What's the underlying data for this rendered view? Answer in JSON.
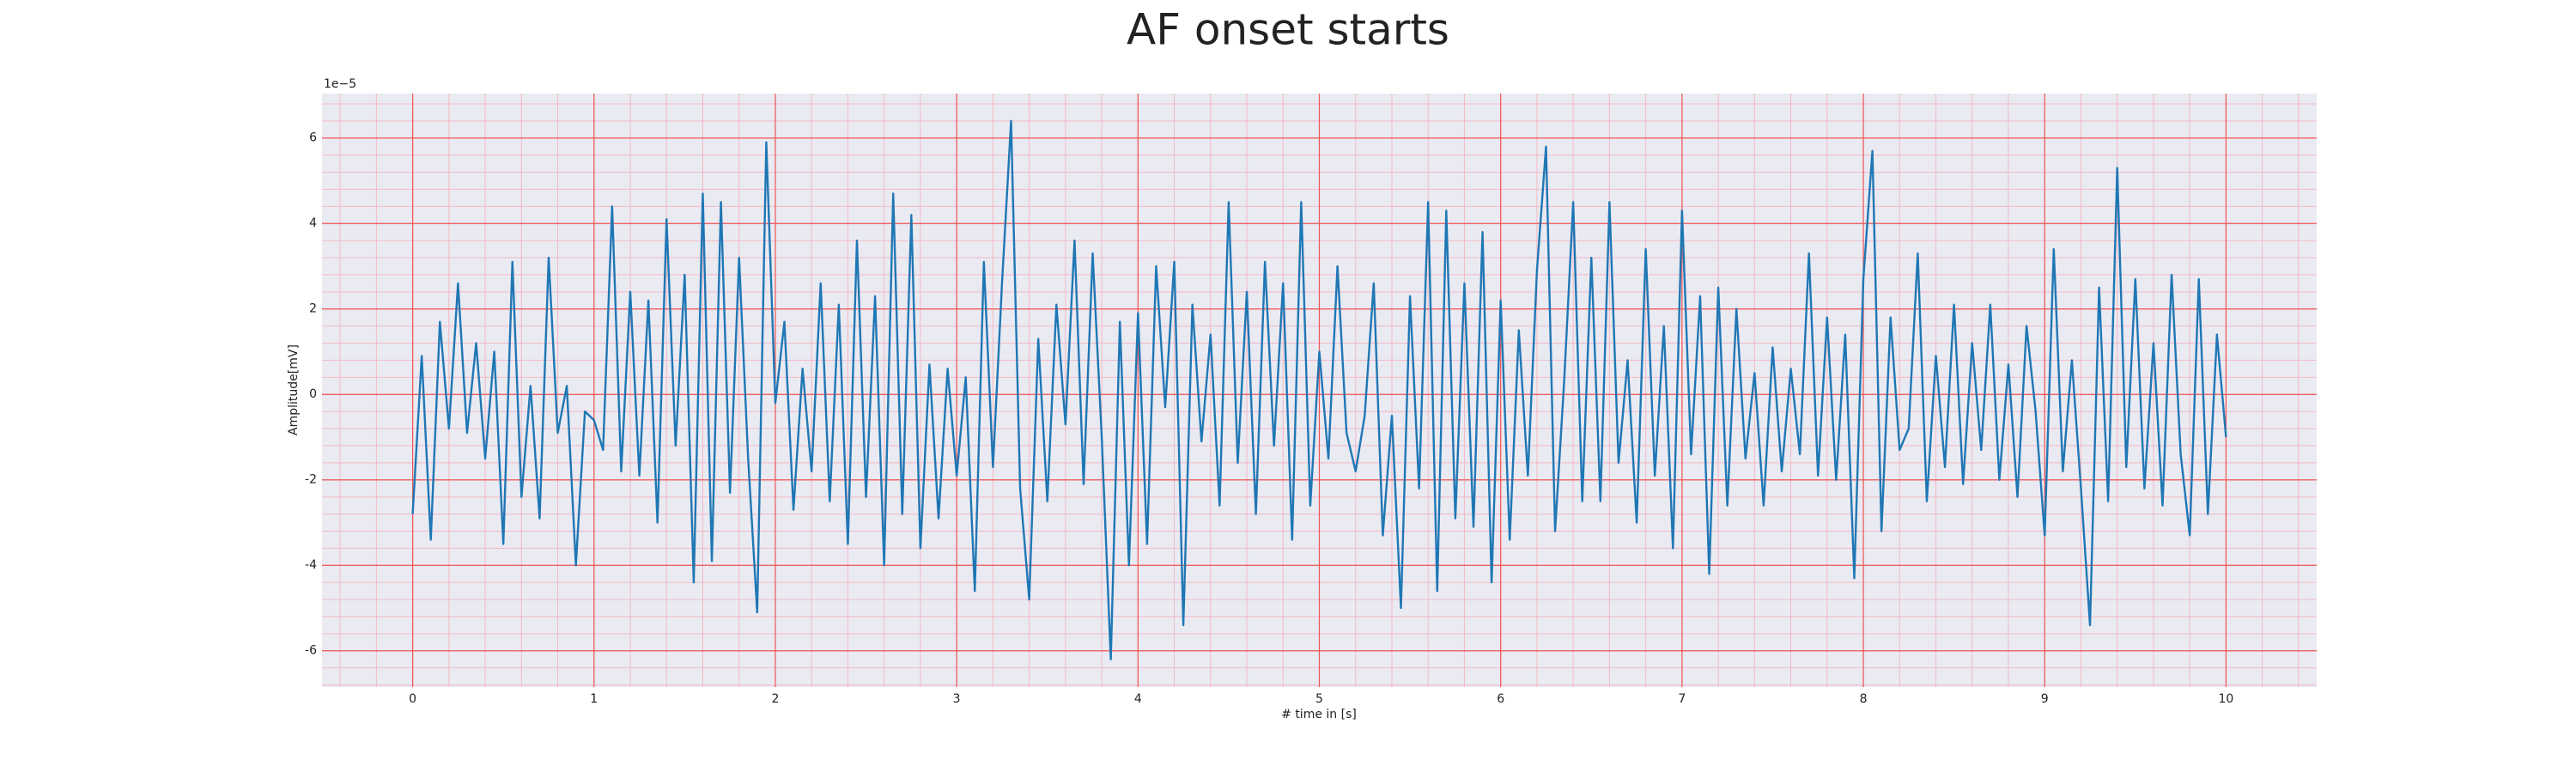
{
  "chart_data": {
    "type": "line",
    "title": "AF onset starts",
    "x_label": "# time in [s]",
    "y_label": "Amplitude[mV]",
    "y_offset_label": "1e−5",
    "x": [
      0,
      0.05,
      0.1,
      0.15,
      0.2,
      0.25,
      0.3,
      0.35,
      0.4,
      0.45,
      0.5,
      0.55,
      0.6,
      0.65,
      0.7,
      0.75,
      0.8,
      0.85,
      0.9,
      0.95,
      1,
      1.05,
      1.1,
      1.15,
      1.2,
      1.25,
      1.3,
      1.35,
      1.4,
      1.45,
      1.5,
      1.55,
      1.6,
      1.65,
      1.7,
      1.75,
      1.8,
      1.85,
      1.9,
      1.95,
      2,
      2.05,
      2.1,
      2.15,
      2.2,
      2.25,
      2.3,
      2.35,
      2.4,
      2.45,
      2.5,
      2.55,
      2.6,
      2.65,
      2.7,
      2.75,
      2.8,
      2.85,
      2.9,
      2.95,
      3,
      3.05,
      3.1,
      3.15,
      3.2,
      3.25,
      3.3,
      3.35,
      3.4,
      3.45,
      3.5,
      3.55,
      3.6,
      3.65,
      3.7,
      3.75,
      3.8,
      3.85,
      3.9,
      3.95,
      4,
      4.05,
      4.1,
      4.15,
      4.2,
      4.25,
      4.3,
      4.35,
      4.4,
      4.45,
      4.5,
      4.55,
      4.6,
      4.65,
      4.7,
      4.75,
      4.8,
      4.85,
      4.9,
      4.95,
      5,
      5.05,
      5.1,
      5.15,
      5.2,
      5.25,
      5.3,
      5.35,
      5.4,
      5.45,
      5.5,
      5.55,
      5.6,
      5.65,
      5.7,
      5.75,
      5.8,
      5.85,
      5.9,
      5.95,
      6,
      6.05,
      6.1,
      6.15,
      6.2,
      6.25,
      6.3,
      6.35,
      6.4,
      6.45,
      6.5,
      6.55,
      6.6,
      6.65,
      6.7,
      6.75,
      6.8,
      6.85,
      6.9,
      6.95,
      7,
      7.05,
      7.1,
      7.15,
      7.2,
      7.25,
      7.3,
      7.35,
      7.4,
      7.45,
      7.5,
      7.55,
      7.6,
      7.65,
      7.7,
      7.75,
      7.8,
      7.85,
      7.9,
      7.95,
      8,
      8.05,
      8.1,
      8.15,
      8.2,
      8.25,
      8.3,
      8.35,
      8.4,
      8.45,
      8.5,
      8.55,
      8.6,
      8.65,
      8.7,
      8.75,
      8.8,
      8.85,
      8.9,
      8.95,
      9,
      9.05,
      9.1,
      9.15,
      9.2,
      9.25,
      9.3,
      9.35,
      9.4,
      9.45,
      9.5,
      9.55,
      9.6,
      9.65,
      9.7,
      9.75,
      9.8,
      9.85,
      9.9,
      9.95,
      10
    ],
    "series": [
      {
        "color": "#1f77b4",
        "values": [
          -2.8,
          0.9,
          -3.4,
          1.7,
          -0.8,
          2.6,
          -0.9,
          1.2,
          -1.5,
          1.0,
          -3.5,
          3.1,
          -2.4,
          0.2,
          -2.9,
          3.2,
          -0.9,
          0.2,
          -4.0,
          -0.4,
          -0.6,
          -1.3,
          4.4,
          -1.8,
          2.4,
          -1.9,
          2.2,
          -3.0,
          4.1,
          -1.2,
          2.8,
          -4.4,
          4.7,
          -3.9,
          4.5,
          -2.3,
          3.2,
          -1.5,
          -5.1,
          5.9,
          -0.2,
          1.7,
          -2.7,
          0.6,
          -1.8,
          2.6,
          -2.5,
          2.1,
          -3.5,
          3.6,
          -2.4,
          2.3,
          -4.0,
          4.7,
          -2.8,
          4.2,
          -3.6,
          0.7,
          -2.9,
          0.6,
          -1.9,
          0.4,
          -4.6,
          3.1,
          -1.7,
          2.6,
          6.4,
          -2.2,
          -4.8,
          1.3,
          -2.5,
          2.1,
          -0.7,
          3.6,
          -2.1,
          3.3,
          -1.0,
          -6.2,
          1.7,
          -4.0,
          1.9,
          -3.5,
          3.0,
          -0.3,
          3.1,
          -5.4,
          2.1,
          -1.1,
          1.4,
          -2.6,
          4.5,
          -1.6,
          2.4,
          -2.8,
          3.1,
          -1.2,
          2.6,
          -3.4,
          4.5,
          -2.6,
          1.0,
          -1.5,
          3.0,
          -0.9,
          -1.8,
          -0.5,
          2.6,
          -3.3,
          -0.5,
          -5.0,
          2.3,
          -2.2,
          4.5,
          -4.6,
          4.3,
          -2.9,
          2.6,
          -3.1,
          3.8,
          -4.4,
          2.2,
          -3.4,
          1.5,
          -1.9,
          2.9,
          5.8,
          -3.2,
          0.3,
          4.5,
          -2.5,
          3.2,
          -2.5,
          4.5,
          -1.6,
          0.8,
          -3.0,
          3.4,
          -1.9,
          1.6,
          -3.6,
          4.3,
          -1.4,
          2.3,
          -4.2,
          2.5,
          -2.6,
          2.0,
          -1.5,
          0.5,
          -2.6,
          1.1,
          -1.8,
          0.6,
          -1.4,
          3.3,
          -1.9,
          1.8,
          -2.0,
          1.4,
          -4.3,
          2.7,
          5.7,
          -3.2,
          1.8,
          -1.3,
          -0.8,
          3.3,
          -2.5,
          0.9,
          -1.7,
          2.1,
          -2.1,
          1.2,
          -1.3,
          2.1,
          -2.0,
          0.7,
          -2.4,
          1.6,
          -0.4,
          -3.3,
          3.4,
          -1.8,
          0.8,
          -2.2,
          -5.4,
          2.5,
          -2.5,
          5.3,
          -1.7,
          2.7,
          -2.2,
          1.2,
          -2.6,
          2.8,
          -1.4,
          -3.3,
          2.7,
          -2.8,
          1.4,
          -1.0
        ]
      }
    ],
    "xlim": [
      -0.5,
      10.5
    ],
    "ylim": [
      -6.85,
      7.04
    ],
    "xticks": [
      0,
      1,
      2,
      3,
      4,
      5,
      6,
      7,
      8,
      9,
      10
    ],
    "yticks": [
      -6,
      -4,
      -2,
      0,
      2,
      4,
      6
    ],
    "grid": true,
    "minor_grid": true
  }
}
